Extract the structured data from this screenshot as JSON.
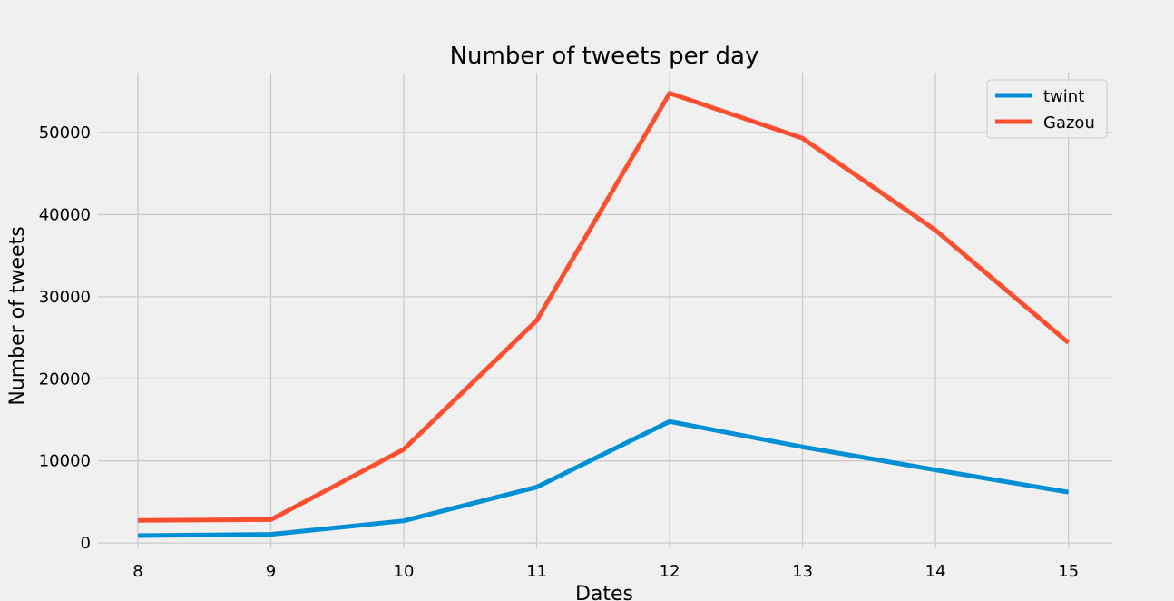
{
  "chart_data": {
    "type": "line",
    "title": "Number of tweets per day",
    "xlabel": "Dates",
    "ylabel": "Number of tweets",
    "x": [
      8,
      9,
      10,
      11,
      12,
      13,
      14,
      15
    ],
    "xlim": [
      7.7,
      15.33
    ],
    "ylim": [
      -650,
      57300
    ],
    "xticks": [
      8,
      9,
      10,
      11,
      12,
      13,
      14,
      15
    ],
    "yticks": [
      0,
      10000,
      20000,
      30000,
      40000,
      50000
    ],
    "grid": true,
    "legend_position": "top-right",
    "series": [
      {
        "name": "twint",
        "color": "#008fd5",
        "values": [
          900,
          1050,
          2700,
          6800,
          14800,
          11700,
          8900,
          6200
        ]
      },
      {
        "name": "Gazou",
        "color": "#fc4f30",
        "values": [
          2750,
          2850,
          11400,
          27100,
          54800,
          49300,
          38100,
          24400
        ]
      }
    ]
  }
}
